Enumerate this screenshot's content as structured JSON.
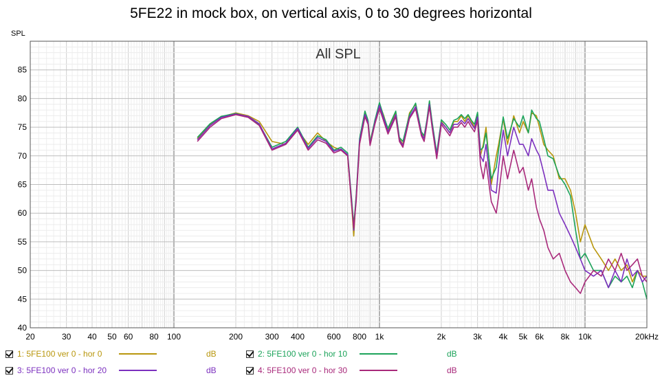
{
  "chart_data": {
    "type": "line",
    "title": "5FE22 in mock box, on vertical axis, 0 to 30 degrees horizontal",
    "subtitle": "All SPL",
    "ylabel": "SPL",
    "xlabel": "",
    "x_scale": "log",
    "xlim": [
      20,
      20000
    ],
    "ylim": [
      40,
      90
    ],
    "x_ticks": [
      {
        "value": 20,
        "label": "20"
      },
      {
        "value": 30,
        "label": "30"
      },
      {
        "value": 40,
        "label": "40"
      },
      {
        "value": 50,
        "label": "50"
      },
      {
        "value": 60,
        "label": "60"
      },
      {
        "value": 80,
        "label": "80"
      },
      {
        "value": 100,
        "label": "100"
      },
      {
        "value": 200,
        "label": "200"
      },
      {
        "value": 300,
        "label": "300"
      },
      {
        "value": 400,
        "label": "400"
      },
      {
        "value": 600,
        "label": "600"
      },
      {
        "value": 800,
        "label": "800"
      },
      {
        "value": 1000,
        "label": "1k"
      },
      {
        "value": 2000,
        "label": "2k"
      },
      {
        "value": 3000,
        "label": "3k"
      },
      {
        "value": 4000,
        "label": "4k"
      },
      {
        "value": 5000,
        "label": "5k"
      },
      {
        "value": 6000,
        "label": "6k"
      },
      {
        "value": 8000,
        "label": "8k"
      },
      {
        "value": 10000,
        "label": "10k"
      },
      {
        "value": 20000,
        "label": "20kHz"
      }
    ],
    "y_ticks": [
      40,
      45,
      50,
      55,
      60,
      65,
      70,
      75,
      80,
      85
    ],
    "grid": true,
    "legend_position": "bottom",
    "series": [
      {
        "name": "1: 5FE100 ver 0 - hor 0",
        "unit": "dB",
        "color": "#b8960c",
        "x": [
          130,
          150,
          170,
          200,
          230,
          260,
          300,
          350,
          400,
          450,
          500,
          550,
          600,
          650,
          700,
          730,
          750,
          770,
          800,
          850,
          880,
          900,
          950,
          1000,
          1050,
          1100,
          1200,
          1250,
          1300,
          1400,
          1500,
          1600,
          1650,
          1700,
          1750,
          1800,
          1900,
          2000,
          2100,
          2200,
          2300,
          2400,
          2500,
          2600,
          2700,
          2800,
          2900,
          3000,
          3100,
          3200,
          3300,
          3500,
          3700,
          3800,
          4000,
          4200,
          4500,
          4800,
          5000,
          5300,
          5500,
          5800,
          6000,
          6300,
          6600,
          7000,
          7500,
          8000,
          8500,
          9000,
          9500,
          10000,
          11000,
          12000,
          13000,
          14000,
          15000,
          16000,
          17000,
          18000,
          19000,
          20000
        ],
        "y": [
          73,
          75.5,
          76.8,
          77.5,
          77,
          76,
          72.5,
          72,
          74.5,
          72,
          74,
          72.5,
          71.5,
          71,
          70,
          62,
          56,
          63,
          72,
          77.5,
          76,
          72.5,
          76,
          79,
          77,
          74.5,
          77.5,
          73,
          72,
          77.5,
          79,
          74,
          73,
          76,
          79.5,
          76,
          70,
          76,
          75,
          74,
          76,
          76,
          77,
          76,
          77,
          76,
          75,
          77.5,
          70,
          72,
          75,
          65,
          70,
          72,
          76.5,
          72,
          77,
          74,
          76,
          74,
          77.5,
          77,
          75,
          72,
          71,
          70,
          66,
          66,
          64,
          60,
          55,
          58,
          54,
          52,
          50,
          52,
          50,
          51,
          48,
          50,
          49,
          49
        ]
      },
      {
        "name": "2: 5FE100 ver 0 - hor 10",
        "unit": "dB",
        "color": "#1ca35a",
        "x": [
          130,
          150,
          170,
          200,
          230,
          260,
          300,
          350,
          400,
          450,
          500,
          550,
          600,
          650,
          700,
          730,
          750,
          770,
          800,
          850,
          880,
          900,
          950,
          1000,
          1050,
          1100,
          1200,
          1250,
          1300,
          1400,
          1500,
          1600,
          1650,
          1700,
          1750,
          1800,
          1900,
          2000,
          2100,
          2200,
          2300,
          2400,
          2500,
          2600,
          2700,
          2800,
          2900,
          3000,
          3100,
          3200,
          3300,
          3500,
          3700,
          3800,
          4000,
          4200,
          4500,
          4800,
          5000,
          5300,
          5500,
          5800,
          6000,
          6300,
          6600,
          7000,
          7500,
          8000,
          8500,
          9000,
          9500,
          10000,
          11000,
          12000,
          13000,
          14000,
          15000,
          16000,
          17000,
          18000,
          19000,
          20000
        ],
        "y": [
          73.2,
          75.6,
          76.9,
          77.4,
          76.8,
          75.5,
          71.5,
          72.5,
          75,
          71.5,
          73.5,
          72.8,
          71,
          71.5,
          70.5,
          63,
          58,
          63,
          73,
          77.8,
          76.2,
          72.3,
          76.2,
          79.3,
          76.8,
          74.8,
          77.8,
          73.2,
          72.5,
          77.2,
          79.2,
          74.2,
          73.5,
          76.2,
          79.6,
          76.2,
          70.5,
          76.3,
          75.5,
          74.5,
          76.2,
          76.5,
          77.2,
          76.5,
          77.2,
          76.2,
          75.5,
          77.6,
          71,
          71.5,
          74,
          66,
          68,
          71,
          76.8,
          73,
          76.5,
          75,
          77,
          74,
          78,
          76.5,
          76,
          73,
          70,
          69.5,
          66.5,
          65,
          63,
          57,
          52,
          53,
          50,
          50,
          47,
          49,
          48,
          49,
          47,
          50,
          48,
          45
        ]
      },
      {
        "name": "3: 5FE100 ver 0 - hor 20",
        "unit": "dB",
        "color": "#7b2fbe",
        "x": [
          130,
          150,
          170,
          200,
          230,
          260,
          300,
          350,
          400,
          450,
          500,
          550,
          600,
          650,
          700,
          730,
          750,
          770,
          800,
          850,
          880,
          900,
          950,
          1000,
          1050,
          1100,
          1200,
          1250,
          1300,
          1400,
          1500,
          1600,
          1650,
          1700,
          1750,
          1800,
          1900,
          2000,
          2100,
          2200,
          2300,
          2400,
          2500,
          2600,
          2700,
          2800,
          2900,
          3000,
          3100,
          3200,
          3300,
          3500,
          3700,
          3800,
          4000,
          4200,
          4500,
          4800,
          5000,
          5300,
          5500,
          5800,
          6000,
          6300,
          6600,
          7000,
          7500,
          8000,
          8500,
          9000,
          9500,
          10000,
          11000,
          12000,
          13000,
          14000,
          15000,
          16000,
          17000,
          18000,
          19000,
          20000
        ],
        "y": [
          72.8,
          75.3,
          76.7,
          77.3,
          76.9,
          75.6,
          71.2,
          72.2,
          74.8,
          71.3,
          73.2,
          72.5,
          70.8,
          71.2,
          70.2,
          62.5,
          57,
          62.5,
          72.5,
          77.2,
          75.8,
          72,
          75.8,
          78.8,
          76.5,
          74.2,
          77.2,
          72.8,
          71.8,
          76.8,
          78.6,
          73.8,
          73,
          75.8,
          79,
          75.6,
          70,
          75.8,
          75,
          74,
          75.5,
          75.5,
          76.2,
          75.6,
          76.5,
          75.6,
          74.8,
          76.8,
          70,
          69,
          72,
          64,
          63.5,
          68,
          74.5,
          70,
          75,
          72,
          72,
          70,
          73,
          71,
          70,
          67,
          64,
          64,
          60,
          58,
          56,
          54,
          52,
          50,
          49,
          50,
          47,
          50,
          48,
          52,
          49,
          50,
          48,
          49
        ]
      },
      {
        "name": "4: 5FE100 ver 0 - hor 30",
        "unit": "dB",
        "color": "#a8287a",
        "x": [
          130,
          150,
          170,
          200,
          230,
          260,
          300,
          350,
          400,
          450,
          500,
          550,
          600,
          650,
          700,
          730,
          750,
          770,
          800,
          850,
          880,
          900,
          950,
          1000,
          1050,
          1100,
          1200,
          1250,
          1300,
          1400,
          1500,
          1600,
          1650,
          1700,
          1750,
          1800,
          1900,
          2000,
          2100,
          2200,
          2300,
          2400,
          2500,
          2600,
          2700,
          2800,
          2900,
          3000,
          3100,
          3200,
          3300,
          3500,
          3700,
          3800,
          4000,
          4200,
          4500,
          4800,
          5000,
          5300,
          5500,
          5800,
          6000,
          6300,
          6600,
          7000,
          7500,
          8000,
          8500,
          9000,
          9500,
          10000,
          11000,
          12000,
          13000,
          14000,
          15000,
          16000,
          17000,
          18000,
          19000,
          20000
        ],
        "y": [
          72.5,
          75,
          76.5,
          77.2,
          76.7,
          75.3,
          71,
          72,
          74.5,
          71,
          72.8,
          72.2,
          70.5,
          71,
          70,
          62,
          57.5,
          62,
          72,
          76.8,
          75.5,
          71.8,
          75.5,
          78.3,
          76,
          73.8,
          76.8,
          72.5,
          71.5,
          76.5,
          78.2,
          73.5,
          72.5,
          75.5,
          78.6,
          75.2,
          69.5,
          75.5,
          74.5,
          73.5,
          75,
          75,
          75.8,
          75,
          76,
          75,
          74.2,
          76.2,
          68.5,
          66,
          69,
          62,
          60,
          63,
          70,
          66,
          71,
          67,
          68,
          64,
          66,
          61,
          59,
          57,
          54,
          52,
          53,
          50,
          48,
          47,
          46,
          48,
          50,
          49,
          52,
          50,
          53,
          50,
          51,
          52,
          49,
          48
        ]
      }
    ]
  }
}
